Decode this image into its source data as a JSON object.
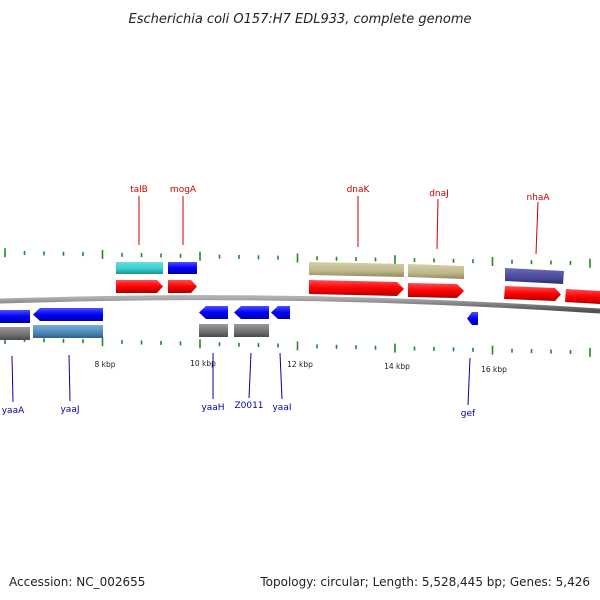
{
  "title": "Escherichia coli O157:H7 EDL933, complete genome",
  "footer": {
    "accession": "Accession: NC_002655",
    "summary": "Topology: circular; Length: 5,528,445 bp; Genes: 5,426"
  },
  "colors": {
    "forward_label": "#cc0000",
    "reverse_label": "#0000aa",
    "tick": "#1f8a1f",
    "backbone": "#808080"
  },
  "scale_labels": [
    "8 kbp",
    "10 kbp",
    "12 kbp",
    "14 kbp",
    "16 kbp"
  ],
  "forward_genes": [
    {
      "label": "talB",
      "color": "#ff0000"
    },
    {
      "label": "mogA",
      "color": "#ff0000"
    },
    {
      "label": "dnaK",
      "color": "#ff0000"
    },
    {
      "label": "dnaJ",
      "color": "#ff0000"
    },
    {
      "label": "nhaA",
      "color": "#ff0000"
    }
  ],
  "reverse_genes": [
    {
      "label": "yaaA",
      "color": "#0000ff"
    },
    {
      "label": "yaaJ",
      "color": "#0000ff"
    },
    {
      "label": "yaaH",
      "color": "#0000ff"
    },
    {
      "label": "Z0011",
      "color": "#0000ff"
    },
    {
      "label": "yaaI",
      "color": "#0000ff"
    },
    {
      "label": "gef",
      "color": "#0000ff"
    }
  ],
  "feature_colors": {
    "cog_forward_1": "#33cccc",
    "cog_forward_2": "#0000ee",
    "cog_forward_3": "#bdb78a",
    "cog_forward_4": "#4a4a99",
    "cog_reverse_1": "#707070",
    "cog_reverse_2": "#4a86b8"
  }
}
